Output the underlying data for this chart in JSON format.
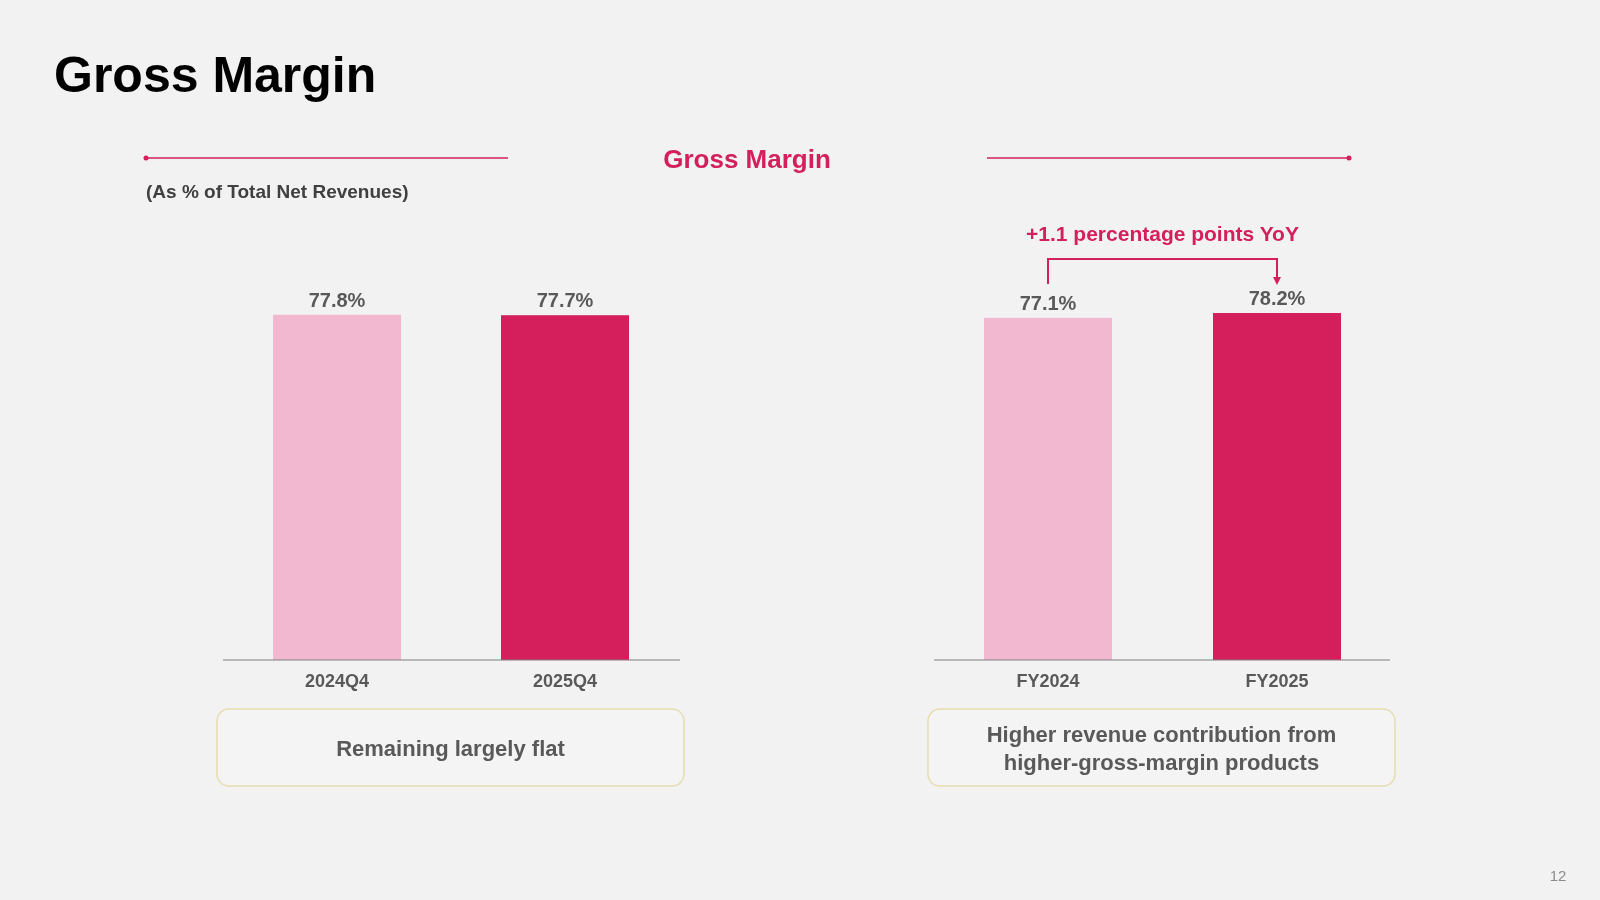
{
  "chart_data": [
    {
      "type": "bar",
      "title": "Gross Margin",
      "subtitle": "Gross Margin",
      "categories": [
        "2024Q4",
        "2025Q4"
      ],
      "values": [
        77.8,
        77.7
      ],
      "colors": [
        "#f2b8cf",
        "#d41f5c"
      ],
      "value_labels": [
        "77.8%",
        "77.7%"
      ],
      "annotations": [
        "(As % of Total Net Revenues)",
        "Remaining largely flat",
        "12"
      ]
    },
    {
      "type": "bar",
      "categories": [
        "FY2024",
        "FY2025"
      ],
      "values": [
        77.1,
        78.2
      ],
      "colors": [
        "#f2b8cf",
        "#d41f5c"
      ],
      "value_labels": [
        "77.1%",
        "78.2%"
      ],
      "annotations": [
        "+1.1 percentage points YoY",
        "Higher revenue contribution from higher-gross-margin products"
      ]
    }
  ]
}
